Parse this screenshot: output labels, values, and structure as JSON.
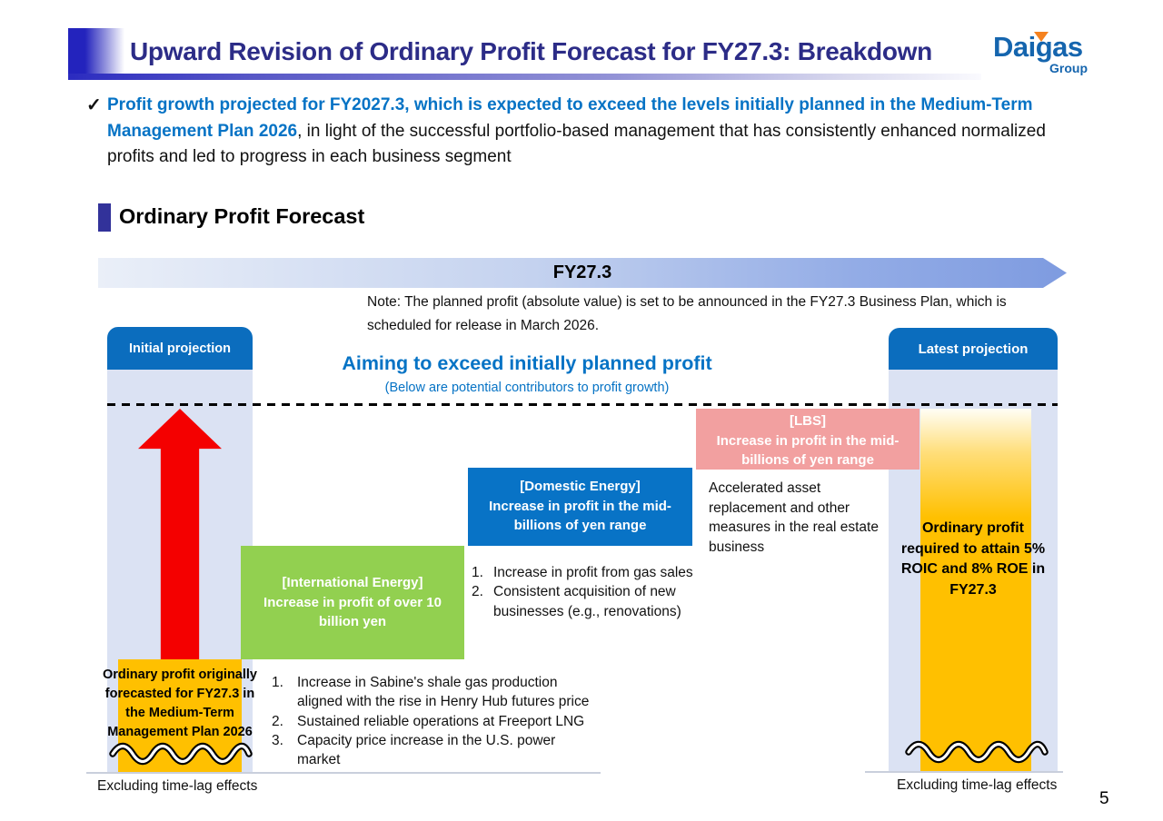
{
  "header": {
    "title": "Upward Revision of Ordinary Profit Forecast for FY27.3: Breakdown",
    "logo": {
      "brand": "Daigas",
      "sub": "Group"
    }
  },
  "summary": {
    "check": "✓",
    "highlight": "Profit growth projected for FY2027.3, which is expected to exceed the levels initially planned in the Medium-Term Management Plan 2026",
    "rest": ", in light of the successful portfolio-based management that has consistently enhanced normalized profits and led to progress in each business segment"
  },
  "section_title": "Ordinary Profit Forecast",
  "timeline_banner": "FY27.3",
  "note": "Note: The planned profit (absolute value) is set to be announced in the FY27.3 Business Plan, which is scheduled for release in March 2026.",
  "target": {
    "title": "Aiming to exceed initially planned profit",
    "subtitle": "(Below are potential contributors to profit growth)"
  },
  "columns": {
    "initial": {
      "header": "Initial projection",
      "bar_label": "Ordinary profit originally forecasted for FY27.3 in the Medium-Term Management Plan 2026",
      "footnote": "Excluding time-lag effects"
    },
    "latest": {
      "header": "Latest projection",
      "bar_label": "Ordinary profit required to attain 5% ROIC and 8% ROE in FY27.3",
      "footnote": "Excluding time-lag effects"
    }
  },
  "contributors": {
    "international": {
      "tag": "[International Energy]",
      "label": "Increase in profit of over 10 billion yen",
      "color": "#92D050",
      "items": [
        "Increase in Sabine's shale gas production aligned with the rise in Henry Hub futures price",
        "Sustained reliable operations at Freeport LNG",
        "Capacity price increase in the U.S. power market"
      ]
    },
    "domestic": {
      "tag": "[Domestic Energy]",
      "label": "Increase in profit in the mid-billions of yen range",
      "color": "#0873C6",
      "items": [
        "Increase in profit from gas sales",
        "Consistent acquisition of new businesses (e.g., renovations)"
      ]
    },
    "lbs": {
      "tag": "[LBS]",
      "label": "Increase in profit in the mid-billions of yen range",
      "color": "#F2A0A0",
      "note": "Accelerated asset replacement and other measures in the real estate business"
    }
  },
  "colors": {
    "accent_blue": "#0673C5",
    "title_navy": "#2C2C87",
    "column_bg": "#DBE2F3",
    "bar_orange": "#FFC000",
    "arrow_red": "#F40000",
    "logo_blue": "#1565AE",
    "logo_orange": "#F5821F"
  },
  "page_number": "5"
}
